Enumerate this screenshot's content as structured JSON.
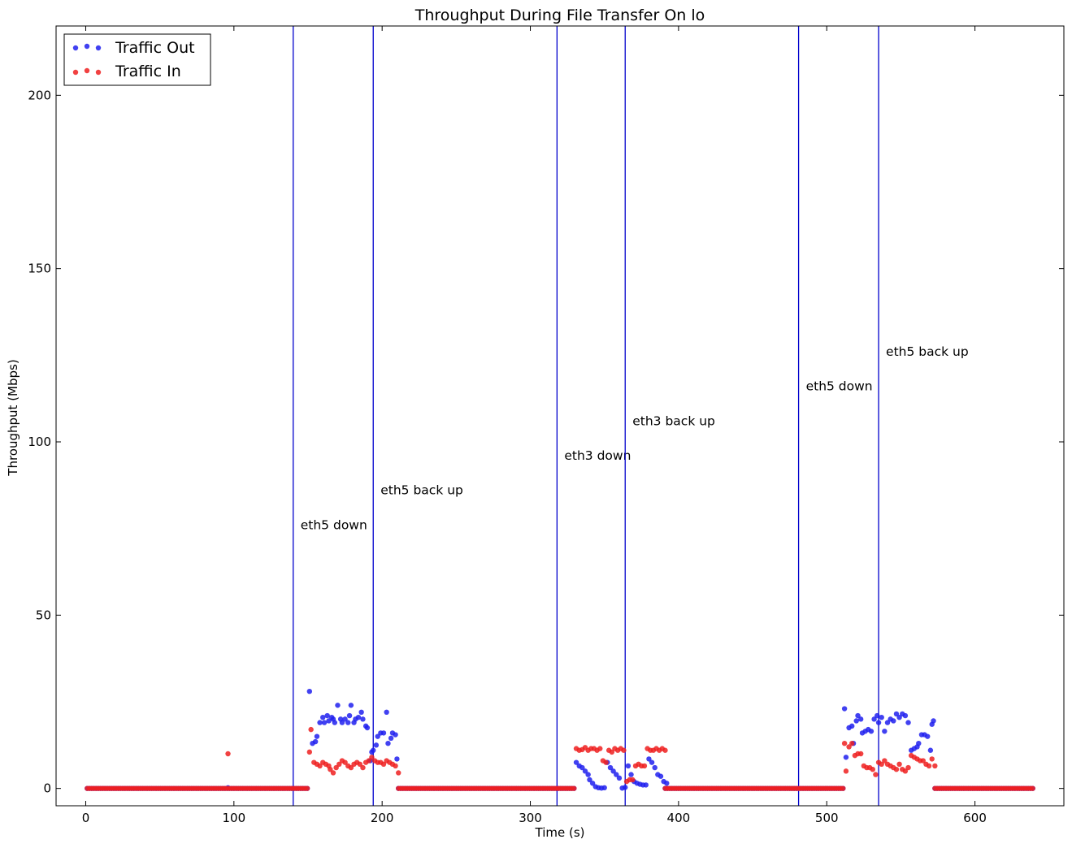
{
  "chart_data": {
    "type": "scatter",
    "title": "Throughput During File Transfer On lo",
    "xlabel": "Time (s)",
    "ylabel": "Throughput (Mbps)",
    "xlim": [
      -20,
      660
    ],
    "ylim": [
      -5,
      220
    ],
    "xticks": [
      0,
      100,
      200,
      300,
      400,
      500,
      600
    ],
    "yticks": [
      0,
      50,
      100,
      150,
      200
    ],
    "grid": false,
    "legend_position": "top-left",
    "series": [
      {
        "name": "Traffic Out",
        "color": "#2020ee",
        "points": [
          [
            96,
            0.2
          ],
          [
            151,
            28
          ],
          [
            153,
            13
          ],
          [
            155,
            13.5
          ],
          [
            156,
            15
          ],
          [
            158,
            19
          ],
          [
            160,
            20.5
          ],
          [
            161,
            19
          ],
          [
            163,
            21
          ],
          [
            164,
            19.5
          ],
          [
            166,
            20.5
          ],
          [
            167,
            20
          ],
          [
            168,
            19
          ],
          [
            170,
            24
          ],
          [
            172,
            20
          ],
          [
            173,
            19
          ],
          [
            175,
            20
          ],
          [
            177,
            19
          ],
          [
            178,
            21
          ],
          [
            179,
            24
          ],
          [
            181,
            19
          ],
          [
            182,
            20
          ],
          [
            184,
            20.5
          ],
          [
            186,
            22
          ],
          [
            187,
            20
          ],
          [
            189,
            18
          ],
          [
            190,
            17.5
          ],
          [
            192,
            8
          ],
          [
            193,
            10.5
          ],
          [
            194,
            11
          ],
          [
            196,
            12.5
          ],
          [
            197,
            15
          ],
          [
            199,
            16
          ],
          [
            201,
            16
          ],
          [
            203,
            22
          ],
          [
            204,
            13
          ],
          [
            206,
            14.5
          ],
          [
            207,
            16
          ],
          [
            209,
            15.5
          ],
          [
            210,
            8.5
          ],
          [
            331,
            7.5
          ],
          [
            333,
            6.5
          ],
          [
            335,
            6
          ],
          [
            337,
            5
          ],
          [
            339,
            4
          ],
          [
            340,
            2.5
          ],
          [
            342,
            1.5
          ],
          [
            344,
            0.5
          ],
          [
            346,
            0.2
          ],
          [
            348,
            0.1
          ],
          [
            350,
            0.2
          ],
          [
            352,
            7.5
          ],
          [
            354,
            6
          ],
          [
            356,
            5
          ],
          [
            358,
            4
          ],
          [
            360,
            3
          ],
          [
            362,
            0.1
          ],
          [
            364,
            0.3
          ],
          [
            366,
            6.5
          ],
          [
            368,
            4
          ],
          [
            370,
            2
          ],
          [
            372,
            1.5
          ],
          [
            374,
            1.2
          ],
          [
            376,
            1
          ],
          [
            378,
            1
          ],
          [
            380,
            8.5
          ],
          [
            382,
            7.5
          ],
          [
            384,
            6
          ],
          [
            386,
            4
          ],
          [
            388,
            3.5
          ],
          [
            390,
            2
          ],
          [
            392,
            1.5
          ],
          [
            512,
            23
          ],
          [
            513,
            9
          ],
          [
            515,
            17.5
          ],
          [
            517,
            18
          ],
          [
            518,
            13
          ],
          [
            520,
            19.5
          ],
          [
            521,
            21
          ],
          [
            523,
            20
          ],
          [
            524,
            16
          ],
          [
            526,
            16.5
          ],
          [
            528,
            17
          ],
          [
            530,
            16.5
          ],
          [
            532,
            20
          ],
          [
            534,
            21
          ],
          [
            535,
            19
          ],
          [
            537,
            20.5
          ],
          [
            539,
            16.5
          ],
          [
            541,
            19
          ],
          [
            543,
            20
          ],
          [
            545,
            19.5
          ],
          [
            547,
            21.5
          ],
          [
            549,
            20.5
          ],
          [
            551,
            21.5
          ],
          [
            553,
            21
          ],
          [
            555,
            19
          ],
          [
            557,
            11
          ],
          [
            559,
            11.5
          ],
          [
            561,
            12
          ],
          [
            562,
            13
          ],
          [
            564,
            15.5
          ],
          [
            566,
            15.5
          ],
          [
            568,
            15
          ],
          [
            570,
            11
          ],
          [
            571,
            18.5
          ],
          [
            572,
            19.5
          ]
        ]
      },
      {
        "name": "Traffic In",
        "color": "#ee2020",
        "points": [
          [
            96,
            10
          ],
          [
            151,
            10.5
          ],
          [
            152,
            17
          ],
          [
            154,
            7.5
          ],
          [
            156,
            7
          ],
          [
            158,
            6.5
          ],
          [
            160,
            7.5
          ],
          [
            162,
            7
          ],
          [
            164,
            6.5
          ],
          [
            165,
            5.5
          ],
          [
            167,
            4.5
          ],
          [
            169,
            6
          ],
          [
            171,
            7
          ],
          [
            173,
            8
          ],
          [
            175,
            7.5
          ],
          [
            177,
            6.5
          ],
          [
            179,
            6
          ],
          [
            181,
            7
          ],
          [
            183,
            7.5
          ],
          [
            185,
            7
          ],
          [
            187,
            6
          ],
          [
            189,
            7.5
          ],
          [
            191,
            8
          ],
          [
            193,
            9
          ],
          [
            195,
            8
          ],
          [
            197,
            7.5
          ],
          [
            199,
            7.5
          ],
          [
            201,
            7
          ],
          [
            203,
            8
          ],
          [
            205,
            7.5
          ],
          [
            207,
            7
          ],
          [
            209,
            6.5
          ],
          [
            211,
            4.5
          ],
          [
            331,
            11.5
          ],
          [
            333,
            11
          ],
          [
            335,
            11.2
          ],
          [
            337,
            11.8
          ],
          [
            339,
            11
          ],
          [
            341,
            11.5
          ],
          [
            343,
            11.5
          ],
          [
            345,
            11
          ],
          [
            347,
            11.5
          ],
          [
            349,
            8
          ],
          [
            351,
            7.5
          ],
          [
            353,
            11
          ],
          [
            355,
            10.5
          ],
          [
            357,
            11.5
          ],
          [
            359,
            11
          ],
          [
            361,
            11.5
          ],
          [
            363,
            11
          ],
          [
            365,
            2
          ],
          [
            367,
            2.5
          ],
          [
            369,
            2.5
          ],
          [
            371,
            6.5
          ],
          [
            373,
            7
          ],
          [
            375,
            6.5
          ],
          [
            377,
            6.5
          ],
          [
            379,
            11.5
          ],
          [
            381,
            11
          ],
          [
            383,
            11
          ],
          [
            385,
            11.5
          ],
          [
            387,
            11
          ],
          [
            389,
            11.5
          ],
          [
            391,
            11
          ],
          [
            512,
            13
          ],
          [
            513,
            5
          ],
          [
            515,
            12
          ],
          [
            517,
            13
          ],
          [
            519,
            9.5
          ],
          [
            521,
            10
          ],
          [
            523,
            10
          ],
          [
            525,
            6.5
          ],
          [
            527,
            6
          ],
          [
            529,
            6
          ],
          [
            531,
            5.5
          ],
          [
            533,
            4
          ],
          [
            535,
            7.5
          ],
          [
            537,
            7
          ],
          [
            539,
            8
          ],
          [
            541,
            7
          ],
          [
            543,
            6.5
          ],
          [
            545,
            6
          ],
          [
            547,
            5.5
          ],
          [
            549,
            7
          ],
          [
            551,
            5.5
          ],
          [
            553,
            5
          ],
          [
            555,
            6
          ],
          [
            557,
            9.5
          ],
          [
            559,
            9
          ],
          [
            561,
            8.5
          ],
          [
            563,
            8
          ],
          [
            565,
            8
          ],
          [
            567,
            7
          ],
          [
            569,
            6.5
          ],
          [
            571,
            8.5
          ],
          [
            573,
            6.5
          ]
        ],
        "zero_runs": [
          [
            1,
            150,
            1.5
          ],
          [
            211,
            330,
            1.5
          ],
          [
            391,
            511,
            1.5
          ],
          [
            573,
            640,
            1.5
          ]
        ]
      }
    ],
    "vlines": [
      {
        "x": 140,
        "label": "eth5 down",
        "label_y": 76
      },
      {
        "x": 194,
        "label": "eth5 back up",
        "label_y": 86
      },
      {
        "x": 318,
        "label": "eth3 down",
        "label_y": 96
      },
      {
        "x": 364,
        "label": "eth3 back up",
        "label_y": 106
      },
      {
        "x": 481,
        "label": "eth5 down",
        "label_y": 116
      },
      {
        "x": 535,
        "label": "eth5 back up",
        "label_y": 126
      }
    ],
    "vline_color": "#0000cc"
  }
}
